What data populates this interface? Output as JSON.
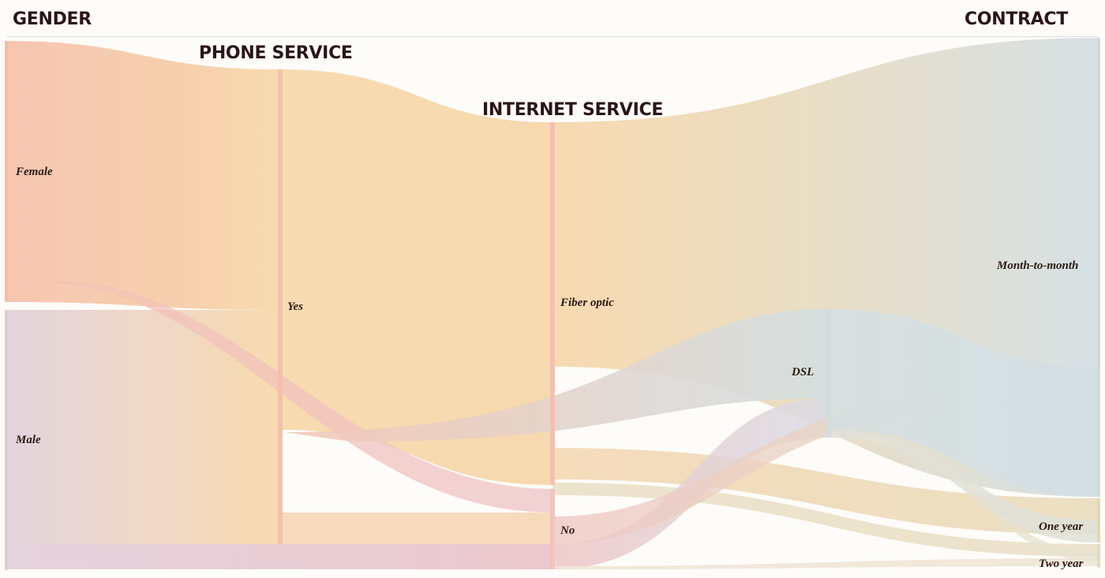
{
  "headers": {
    "gender": "GENDER",
    "phone_service": "PHONE SERVICE",
    "internet_service": "INTERNET SERVICE",
    "contract": "CONTRACT"
  },
  "nodes": {
    "female": "Female",
    "male": "Male",
    "phone_yes": "Yes",
    "fiber_optic": "Fiber optic",
    "internet_no": "No",
    "dsl": "DSL",
    "month_to_month": "Month-to-month",
    "one_year": "One year",
    "two_year": "Two year"
  },
  "colors": {
    "background": "#fdfcf9",
    "female_flow": "#f5c3ad",
    "male_flow": "#e3d0d9",
    "phone_yes_flow": "#f7d8ab",
    "internet_no_flow": "#f1c3c3",
    "dsl_flow": "#d3dfe1",
    "contract_flow": "#d4dfe4",
    "one_year_flow": "#ecdcb8",
    "two_year_flow": "#ebe0c8",
    "title_text": "#2a1516",
    "label_text": "#2b1a14"
  }
}
